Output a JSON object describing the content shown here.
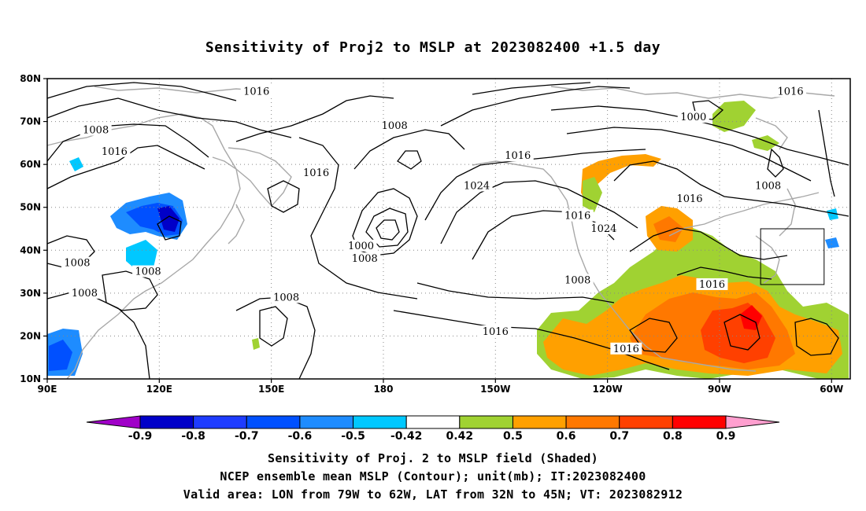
{
  "title": "Sensitivity of Proj2 to MSLP at 2023082400 +1.5 day",
  "map": {
    "lon_labels": [
      "90E",
      "120E",
      "150E",
      "180",
      "150W",
      "120W",
      "90W",
      "60W"
    ],
    "lat_labels": [
      "80N",
      "70N",
      "60N",
      "50N",
      "40N",
      "30N",
      "20N",
      "10N"
    ],
    "contour_labels": [
      {
        "text": "1016",
        "lon": 146,
        "lat": 77
      },
      {
        "text": "1008",
        "lon": 103,
        "lat": 68
      },
      {
        "text": "1016",
        "lon": 108,
        "lat": 63
      },
      {
        "text": "1016",
        "lon": 162,
        "lat": 58
      },
      {
        "text": "1008",
        "lon": 183,
        "lat": 69
      },
      {
        "text": "1016",
        "lon": 216,
        "lat": 62
      },
      {
        "text": "1024",
        "lon": 205,
        "lat": 55
      },
      {
        "text": "1000",
        "lon": 263,
        "lat": 71
      },
      {
        "text": "1016",
        "lon": 289,
        "lat": 77
      },
      {
        "text": "1008",
        "lon": 283,
        "lat": 55
      },
      {
        "text": "1016",
        "lon": 262,
        "lat": 52
      },
      {
        "text": "1016",
        "lon": 232,
        "lat": 48
      },
      {
        "text": "1024",
        "lon": 239,
        "lat": 45
      },
      {
        "text": "1000",
        "lon": 174,
        "lat": 41
      },
      {
        "text": "1008",
        "lon": 175,
        "lat": 38
      },
      {
        "text": "1008",
        "lon": 98,
        "lat": 37
      },
      {
        "text": "1008",
        "lon": 117,
        "lat": 35
      },
      {
        "text": "1008",
        "lon": 100,
        "lat": 30
      },
      {
        "text": "1008",
        "lon": 154,
        "lat": 29
      },
      {
        "text": "1008",
        "lon": 232,
        "lat": 33
      },
      {
        "text": "1016",
        "lon": 210,
        "lat": 21
      },
      {
        "text": "1016",
        "lon": 245,
        "lat": 17
      },
      {
        "text": "1016",
        "lon": 268,
        "lat": 32
      }
    ],
    "valid_box": {
      "lon_min": 281,
      "lon_max": 298,
      "lat_min": 32,
      "lat_max": 45
    },
    "domain": {
      "lon_min": 90,
      "lon_max": 305,
      "lat_min": 10,
      "lat_max": 80
    }
  },
  "colorbar": {
    "labels": [
      "-0.9",
      "-0.8",
      "-0.7",
      "-0.6",
      "-0.5",
      "-0.42",
      "0.42",
      "0.5",
      "0.6",
      "0.7",
      "0.8",
      "0.9"
    ],
    "colors": [
      "#a000c8",
      "#0000c8",
      "#1e3cff",
      "#0050ff",
      "#1e8cff",
      "#00c8ff",
      "#ffffff",
      "#a0d232",
      "#ffa000",
      "#ff7800",
      "#ff4000",
      "#ff0000",
      "#ff9fcf"
    ]
  },
  "footer": {
    "line1": "Sensitivity of Proj. 2 to MSLP field (Shaded)",
    "line2": "NCEP ensemble mean MSLP (Contour); unit(mb); IT:2023082400",
    "line3": "Valid area: LON from 79W to 62W, LAT from 32N to 45N; VT: 2023082912"
  }
}
